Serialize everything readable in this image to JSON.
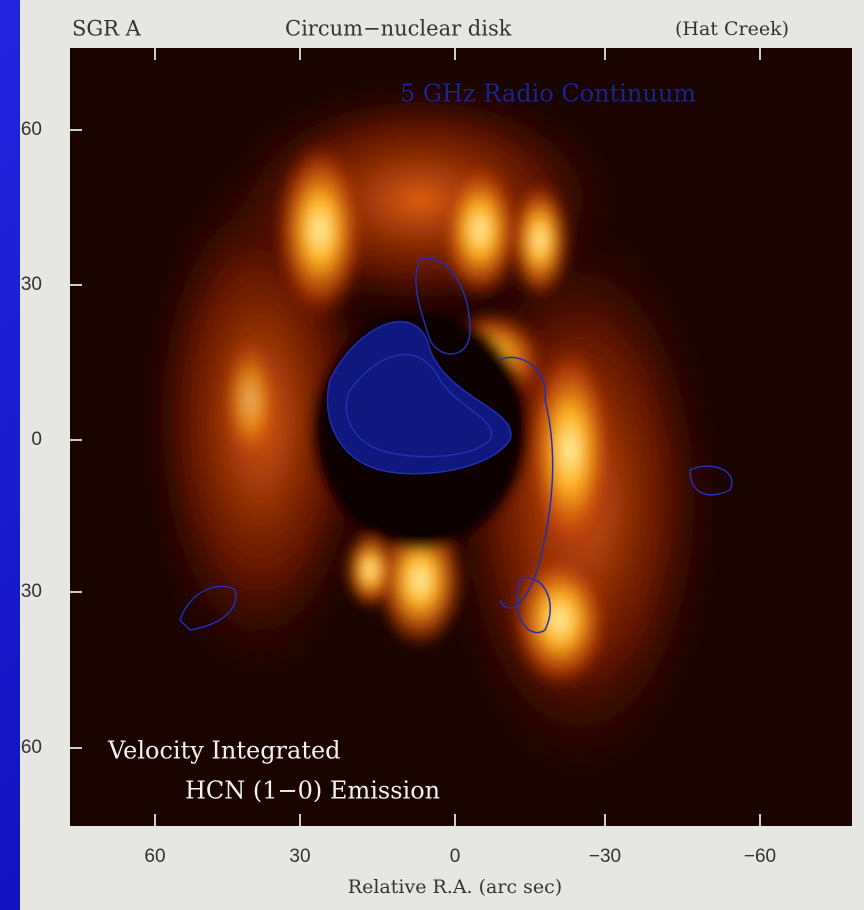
{
  "header": {
    "object": "SGR A",
    "title": "Circum−nuclear disk",
    "telescope": "(Hat Creek)"
  },
  "overlay_label": "5 GHz Radio Continuum",
  "emission_label": [
    "Velocity Integrated",
    "HCN (1−0) Emission"
  ],
  "y_ticks": [
    "60",
    "30",
    "0",
    "30",
    "60"
  ],
  "x_ticks": [
    "60",
    "30",
    "0",
    "−30",
    "−60"
  ],
  "x_axis_label": "Relative R.A. (arc sec)"
}
